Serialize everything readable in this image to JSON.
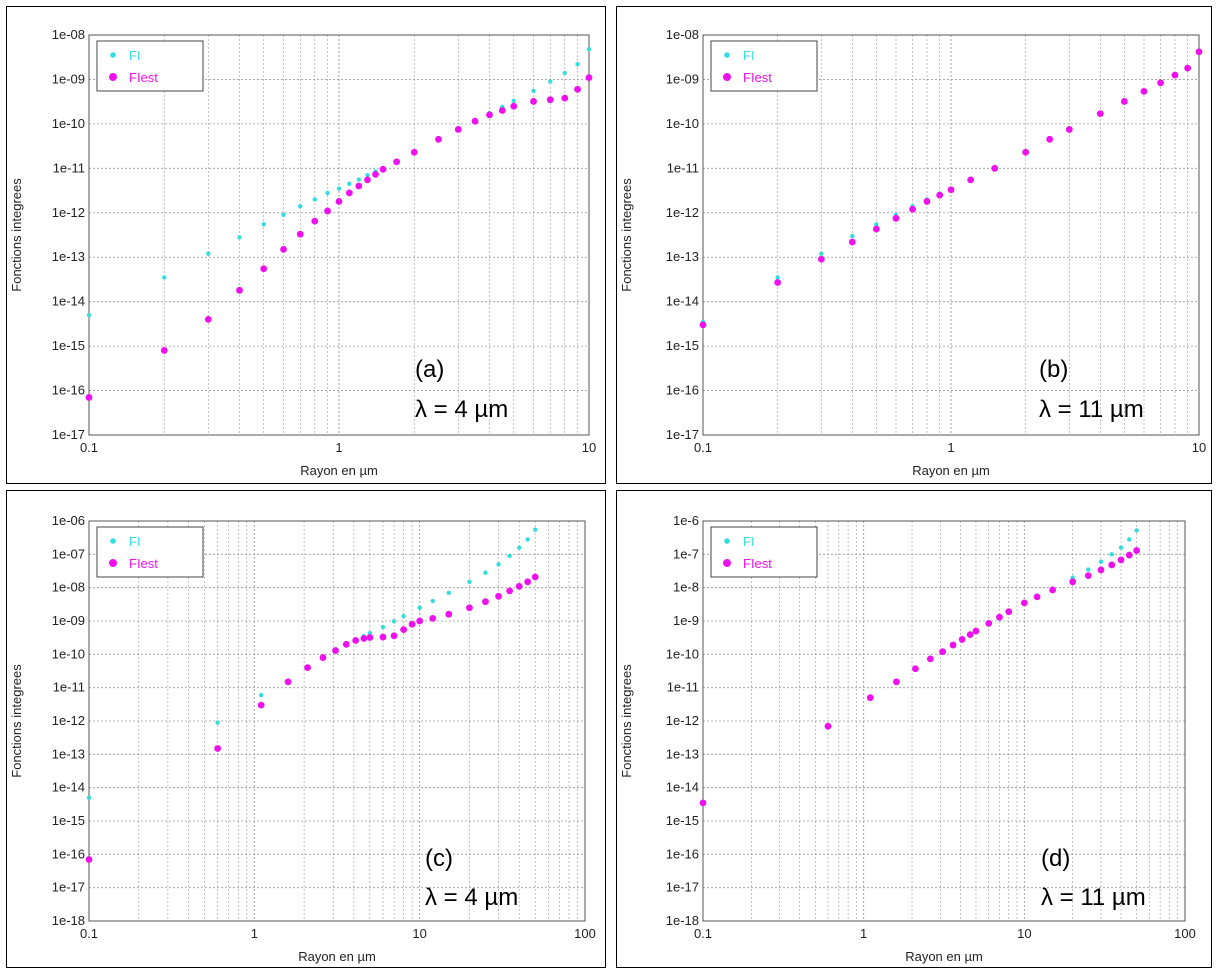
{
  "colors": {
    "fi": "#33dddd",
    "fiest": "#ee11ee",
    "grid": "#999999"
  },
  "chart_data": [
    {
      "type": "scatter",
      "panel_label": "(a)",
      "wavelength_label": "λ = 4 µm",
      "xlabel": "Rayon en µm",
      "ylabel": "Fonctions integrees",
      "xscale": "log",
      "yscale": "log",
      "xlim": [
        0.1,
        10
      ],
      "ylim": [
        1e-17,
        1e-08
      ],
      "x_ticks": [
        "0.1",
        "1",
        "10"
      ],
      "y_ticks": [
        "1e-17",
        "1e-16",
        "1e-15",
        "1e-14",
        "1e-13",
        "1e-12",
        "1e-11",
        "1e-10",
        "1e-09",
        "1e-08"
      ],
      "grid": true,
      "legend_position": "top-left",
      "series": [
        {
          "name": "FI",
          "points": [
            [
              0.1,
              5e-15
            ],
            [
              0.2,
              3.5e-14
            ],
            [
              0.3,
              1.2e-13
            ],
            [
              0.4,
              2.8e-13
            ],
            [
              0.5,
              5.5e-13
            ],
            [
              0.6,
              9e-13
            ],
            [
              0.7,
              1.4e-12
            ],
            [
              0.8,
              2e-12
            ],
            [
              0.9,
              2.8e-12
            ],
            [
              1.0,
              3.5e-12
            ],
            [
              1.1,
              4.5e-12
            ],
            [
              1.2,
              5.6e-12
            ],
            [
              1.3,
              7e-12
            ],
            [
              1.4,
              8.5e-12
            ],
            [
              1.5,
              1e-11
            ],
            [
              1.7,
              1.4e-11
            ],
            [
              2.0,
              2.3e-11
            ],
            [
              2.5,
              4.5e-11
            ],
            [
              3.0,
              7.5e-11
            ],
            [
              3.5,
              1.2e-10
            ],
            [
              4.0,
              1.75e-10
            ],
            [
              4.5,
              2.4e-10
            ],
            [
              5.0,
              3.3e-10
            ],
            [
              6.0,
              5.5e-10
            ],
            [
              7.0,
              9e-10
            ],
            [
              8.0,
              1.4e-09
            ],
            [
              9.0,
              2.2e-09
            ],
            [
              10.0,
              4.8e-09
            ]
          ]
        },
        {
          "name": "FIest",
          "points": [
            [
              0.1,
              7e-17
            ],
            [
              0.2,
              8e-16
            ],
            [
              0.3,
              4e-15
            ],
            [
              0.4,
              1.8e-14
            ],
            [
              0.5,
              5.5e-14
            ],
            [
              0.6,
              1.5e-13
            ],
            [
              0.7,
              3.3e-13
            ],
            [
              0.8,
              6.5e-13
            ],
            [
              0.9,
              1.1e-12
            ],
            [
              1.0,
              1.8e-12
            ],
            [
              1.1,
              2.8e-12
            ],
            [
              1.2,
              4e-12
            ],
            [
              1.3,
              5.5e-12
            ],
            [
              1.4,
              7.3e-12
            ],
            [
              1.5,
              9.5e-12
            ],
            [
              1.7,
              1.4e-11
            ],
            [
              2.0,
              2.3e-11
            ],
            [
              2.5,
              4.5e-11
            ],
            [
              3.0,
              7.5e-11
            ],
            [
              3.5,
              1.15e-10
            ],
            [
              4.0,
              1.6e-10
            ],
            [
              4.5,
              2e-10
            ],
            [
              5.0,
              2.5e-10
            ],
            [
              6.0,
              3.2e-10
            ],
            [
              7.0,
              3.5e-10
            ],
            [
              8.0,
              3.8e-10
            ],
            [
              9.0,
              6e-10
            ],
            [
              10.0,
              1.1e-09
            ]
          ]
        }
      ]
    },
    {
      "type": "scatter",
      "panel_label": "(b)",
      "wavelength_label": "λ = 11 µm",
      "xlabel": "Rayon en µm",
      "ylabel": "Fonctions integrees",
      "xscale": "log",
      "yscale": "log",
      "xlim": [
        0.1,
        10
      ],
      "ylim": [
        1e-17,
        1e-08
      ],
      "x_ticks": [
        "0.1",
        "1",
        "10"
      ],
      "y_ticks": [
        "1e-17",
        "1e-16",
        "1e-15",
        "1e-14",
        "1e-13",
        "1e-12",
        "1e-11",
        "1e-10",
        "1e-09",
        "1e-08"
      ],
      "grid": true,
      "legend_position": "top-left",
      "series": [
        {
          "name": "FI",
          "points": [
            [
              0.1,
              3.5e-15
            ],
            [
              0.2,
              3.5e-14
            ],
            [
              0.3,
              1.2e-13
            ],
            [
              0.4,
              3e-13
            ],
            [
              0.5,
              5.5e-13
            ],
            [
              0.6,
              9e-13
            ],
            [
              0.7,
              1.4e-12
            ],
            [
              0.8,
              2e-12
            ],
            [
              0.9,
              2.7e-12
            ],
            [
              1.0,
              3.5e-12
            ],
            [
              1.2,
              5.7e-12
            ],
            [
              1.5,
              1e-11
            ],
            [
              2.0,
              2.3e-11
            ],
            [
              2.5,
              4.5e-11
            ],
            [
              3.0,
              7.5e-11
            ],
            [
              4.0,
              1.7e-10
            ],
            [
              5.0,
              3.3e-10
            ],
            [
              6.0,
              5.5e-10
            ],
            [
              7.0,
              8.5e-10
            ],
            [
              8.0,
              1.3e-09
            ],
            [
              9.0,
              1.9e-09
            ],
            [
              10.0,
              4.5e-09
            ]
          ]
        },
        {
          "name": "FIest",
          "points": [
            [
              0.1,
              3e-15
            ],
            [
              0.2,
              2.7e-14
            ],
            [
              0.3,
              9e-14
            ],
            [
              0.4,
              2.2e-13
            ],
            [
              0.5,
              4.3e-13
            ],
            [
              0.6,
              7.5e-13
            ],
            [
              0.7,
              1.2e-12
            ],
            [
              0.8,
              1.8e-12
            ],
            [
              0.9,
              2.5e-12
            ],
            [
              1.0,
              3.3e-12
            ],
            [
              1.2,
              5.5e-12
            ],
            [
              1.5,
              1e-11
            ],
            [
              2.0,
              2.3e-11
            ],
            [
              2.5,
              4.5e-11
            ],
            [
              3.0,
              7.5e-11
            ],
            [
              4.0,
              1.7e-10
            ],
            [
              5.0,
              3.2e-10
            ],
            [
              6.0,
              5.4e-10
            ],
            [
              7.0,
              8.4e-10
            ],
            [
              8.0,
              1.25e-09
            ],
            [
              9.0,
              1.8e-09
            ],
            [
              10.0,
              4.2e-09
            ]
          ]
        }
      ]
    },
    {
      "type": "scatter",
      "panel_label": "(c)",
      "wavelength_label": "λ = 4 µm",
      "xlabel": "Rayon en µm",
      "ylabel": "Fonctions integrees",
      "xscale": "log",
      "yscale": "log",
      "xlim": [
        0.1,
        100
      ],
      "ylim": [
        1e-18,
        1e-06
      ],
      "x_ticks": [
        "0.1",
        "1",
        "10",
        "100"
      ],
      "y_ticks": [
        "1e-18",
        "1e-17",
        "1e-16",
        "1e-15",
        "1e-14",
        "1e-13",
        "1e-12",
        "1e-11",
        "1e-10",
        "1e-09",
        "1e-08",
        "1e-07",
        "1e-06"
      ],
      "grid": true,
      "legend_position": "top-left",
      "series": [
        {
          "name": "FI",
          "points": [
            [
              0.1,
              5e-15
            ],
            [
              0.6,
              9e-13
            ],
            [
              1.1,
              6e-12
            ],
            [
              1.6,
              1.6e-11
            ],
            [
              2.1,
              4e-11
            ],
            [
              2.6,
              8e-11
            ],
            [
              3.1,
              1.3e-10
            ],
            [
              3.6,
              2e-10
            ],
            [
              4.1,
              2.7e-10
            ],
            [
              4.6,
              3.5e-10
            ],
            [
              5.0,
              4.3e-10
            ],
            [
              6.0,
              6.6e-10
            ],
            [
              7.0,
              9.8e-10
            ],
            [
              8.0,
              1.4e-09
            ],
            [
              10.0,
              2.5e-09
            ],
            [
              12.0,
              4e-09
            ],
            [
              15.0,
              7e-09
            ],
            [
              20.0,
              1.5e-08
            ],
            [
              25.0,
              2.8e-08
            ],
            [
              30.0,
              5e-08
            ],
            [
              35.0,
              9e-08
            ],
            [
              40.0,
              1.6e-07
            ],
            [
              45.0,
              2.8e-07
            ],
            [
              50.0,
              5.5e-07
            ]
          ]
        },
        {
          "name": "FIest",
          "points": [
            [
              0.1,
              7e-17
            ],
            [
              0.6,
              1.5e-13
            ],
            [
              1.1,
              3e-12
            ],
            [
              1.6,
              1.5e-11
            ],
            [
              2.1,
              4e-11
            ],
            [
              2.6,
              8e-11
            ],
            [
              3.1,
              1.3e-10
            ],
            [
              3.6,
              2e-10
            ],
            [
              4.1,
              2.6e-10
            ],
            [
              4.6,
              3e-10
            ],
            [
              5.0,
              3.2e-10
            ],
            [
              6.0,
              3.3e-10
            ],
            [
              7.0,
              3.6e-10
            ],
            [
              8.0,
              5.5e-10
            ],
            [
              9.0,
              8e-10
            ],
            [
              10.0,
              1e-09
            ],
            [
              12.0,
              1.2e-09
            ],
            [
              15.0,
              1.6e-09
            ],
            [
              20.0,
              2.5e-09
            ],
            [
              25.0,
              3.8e-09
            ],
            [
              30.0,
              5.5e-09
            ],
            [
              35.0,
              8e-09
            ],
            [
              40.0,
              1.1e-08
            ],
            [
              45.0,
              1.5e-08
            ],
            [
              50.0,
              2.1e-08
            ]
          ]
        }
      ]
    },
    {
      "type": "scatter",
      "panel_label": "(d)",
      "wavelength_label": "λ = 11 µm",
      "xlabel": "Rayon en µm",
      "ylabel": "Fonctions integrees",
      "xscale": "log",
      "yscale": "log",
      "xlim": [
        0.1,
        100
      ],
      "ylim": [
        1e-18,
        1e-06
      ],
      "x_ticks": [
        "0.1",
        "1",
        "10",
        "100"
      ],
      "y_ticks": [
        "1e-18",
        "1e-17",
        "1e-16",
        "1e-15",
        "1e-14",
        "1e-13",
        "1e-12",
        "1e-11",
        "1e-10",
        "1e-9",
        "1e-8",
        "1e-7",
        "1e-6"
      ],
      "grid": true,
      "legend_position": "top-left",
      "series": [
        {
          "name": "FI",
          "points": [
            [
              0.1,
              3.5e-15
            ],
            [
              0.6,
              7.5e-13
            ],
            [
              1.1,
              5e-12
            ],
            [
              1.6,
              1.6e-11
            ],
            [
              2.1,
              3.8e-11
            ],
            [
              2.6,
              7.5e-11
            ],
            [
              3.1,
              1.25e-10
            ],
            [
              3.6,
              1.9e-10
            ],
            [
              4.1,
              2.8e-10
            ],
            [
              4.6,
              4e-10
            ],
            [
              5.0,
              5.2e-10
            ],
            [
              6.0,
              9e-10
            ],
            [
              7.0,
              1.4e-09
            ],
            [
              8.0,
              2e-09
            ],
            [
              10.0,
              3.7e-09
            ],
            [
              12.0,
              5.8e-09
            ],
            [
              15.0,
              9.5e-09
            ],
            [
              20.0,
              2e-08
            ],
            [
              25.0,
              3.5e-08
            ],
            [
              30.0,
              6e-08
            ],
            [
              35.0,
              1e-07
            ],
            [
              40.0,
              1.6e-07
            ],
            [
              45.0,
              2.8e-07
            ],
            [
              50.0,
              5.2e-07
            ]
          ]
        },
        {
          "name": "FIest",
          "points": [
            [
              0.1,
              3.5e-15
            ],
            [
              0.6,
              7e-13
            ],
            [
              1.1,
              5e-12
            ],
            [
              1.6,
              1.5e-11
            ],
            [
              2.1,
              3.7e-11
            ],
            [
              2.6,
              7.3e-11
            ],
            [
              3.1,
              1.2e-10
            ],
            [
              3.6,
              1.9e-10
            ],
            [
              4.1,
              2.8e-10
            ],
            [
              4.6,
              3.9e-10
            ],
            [
              5.0,
              5e-10
            ],
            [
              6.0,
              8.5e-10
            ],
            [
              7.0,
              1.3e-09
            ],
            [
              8.0,
              1.9e-09
            ],
            [
              10.0,
              3.5e-09
            ],
            [
              12.0,
              5.3e-09
            ],
            [
              15.0,
              8.5e-09
            ],
            [
              20.0,
              1.5e-08
            ],
            [
              25.0,
              2.3e-08
            ],
            [
              30.0,
              3.4e-08
            ],
            [
              35.0,
              4.8e-08
            ],
            [
              40.0,
              6.8e-08
            ],
            [
              45.0,
              9.5e-08
            ],
            [
              50.0,
              1.3e-07
            ]
          ]
        }
      ]
    }
  ]
}
